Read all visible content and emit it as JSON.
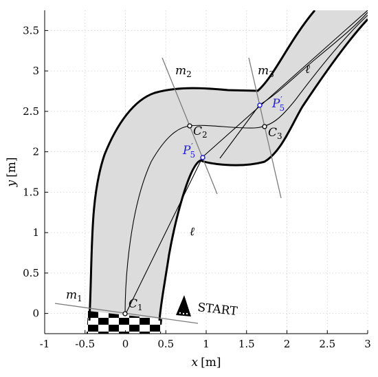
{
  "x_axis": {
    "label_var": "x",
    "label_unit": "[m]",
    "ticks": [
      "-1",
      "-0.5",
      "0",
      "0.5",
      "1",
      "1.5",
      "2",
      "2.5",
      "3"
    ],
    "tick_values": [
      -1,
      -0.5,
      0,
      0.5,
      1,
      1.5,
      2,
      2.5,
      3
    ],
    "range": [
      -1,
      3
    ]
  },
  "y_axis": {
    "label_var": "y",
    "label_unit": "[m]",
    "ticks": [
      "0",
      "0.5",
      "1",
      "1.5",
      "2",
      "2.5",
      "3",
      "3.5"
    ],
    "tick_values": [
      0,
      0.5,
      1,
      1.5,
      2,
      2.5,
      3,
      3.5
    ],
    "range": [
      -0.25,
      3.75
    ]
  },
  "grid": true,
  "colors": {
    "track_fill": "#dcdcdc",
    "track_border": "#000000",
    "line_gray": "#7a7a7a",
    "highlight_blue": "#1f1fd0"
  },
  "labels": {
    "m1": {
      "base": "m",
      "sub": "1"
    },
    "m2": {
      "base": "m",
      "sub": "2"
    },
    "m3": {
      "base": "m",
      "sub": "3"
    },
    "C1": {
      "base": "C",
      "sub": "1"
    },
    "C2": {
      "base": "C",
      "sub": "2"
    },
    "C3": {
      "base": "C",
      "sub": "3"
    },
    "P5_prime": {
      "base": "P",
      "sub": "5",
      "sup": "′"
    },
    "ell": "ℓ",
    "start": "START"
  },
  "points": {
    "C1": [
      0,
      0
    ],
    "C2": [
      0.8,
      2.33
    ],
    "C3": [
      1.73,
      2.32
    ],
    "P5_lower": [
      0.97,
      1.94
    ],
    "P5_upper": [
      1.68,
      2.58
    ]
  }
}
